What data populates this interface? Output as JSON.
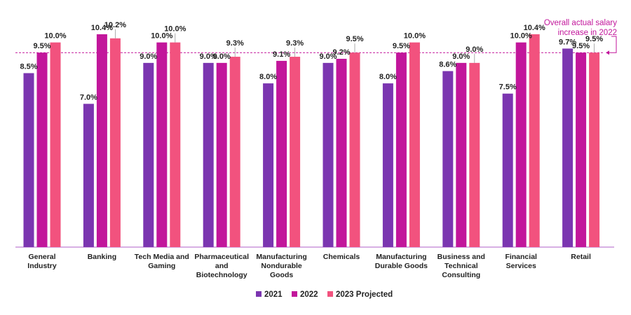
{
  "chart_data": {
    "type": "bar",
    "categories": [
      [
        "General",
        "Industry"
      ],
      [
        "Banking"
      ],
      [
        "Tech Media and",
        "Gaming"
      ],
      [
        "Pharmaceutical",
        "and",
        "Biotechnology"
      ],
      [
        "Manufacturing",
        "Nondurable",
        "Goods"
      ],
      [
        "Chemicals"
      ],
      [
        "Manufacturing",
        "Durable Goods"
      ],
      [
        "Business and",
        "Technical",
        "Consulting"
      ],
      [
        "Financial",
        "Services"
      ],
      [
        "Retail"
      ]
    ],
    "series": [
      {
        "name": "2021",
        "color": "#7b35b0",
        "values": [
          8.5,
          7.0,
          9.0,
          9.0,
          8.0,
          9.0,
          8.0,
          8.6,
          7.5,
          9.7
        ],
        "labels": [
          "8.5%",
          "7.0%",
          "9.0%",
          "9.0%",
          "8.0%",
          "9.0%",
          "8.0%",
          "8.6%",
          "7.5%",
          "9.7%"
        ]
      },
      {
        "name": "2022",
        "color": "#c2169b",
        "values": [
          9.5,
          10.4,
          10.0,
          9.0,
          9.1,
          9.2,
          9.5,
          9.0,
          10.0,
          9.5
        ],
        "labels": [
          "9.5%",
          "10.4%",
          "10.0%",
          "9.0%",
          "9.1%",
          "9.2%",
          "9.5%",
          "9.0%",
          "10.0%",
          "9.5%"
        ]
      },
      {
        "name": "2023 Projected",
        "color": "#f2527e",
        "values": [
          10.0,
          10.2,
          10.0,
          9.3,
          9.3,
          9.5,
          10.0,
          9.0,
          10.4,
          9.5
        ],
        "labels": [
          "10.0%",
          "10.2%",
          "10.0%",
          "9.3%",
          "9.3%",
          "9.5%",
          "10.0%",
          "9.0%",
          "10.4%",
          "9.5%"
        ]
      }
    ],
    "ylim": [
      0,
      10.5
    ],
    "reference_line": {
      "value": 9.5,
      "color": "#c2169b"
    },
    "annotation": {
      "lines": [
        "Overall actual salary",
        "increase in 2022"
      ],
      "color": "#c2169b"
    },
    "legend_position": "bottom-center",
    "axis_color": "#b05fc8"
  }
}
